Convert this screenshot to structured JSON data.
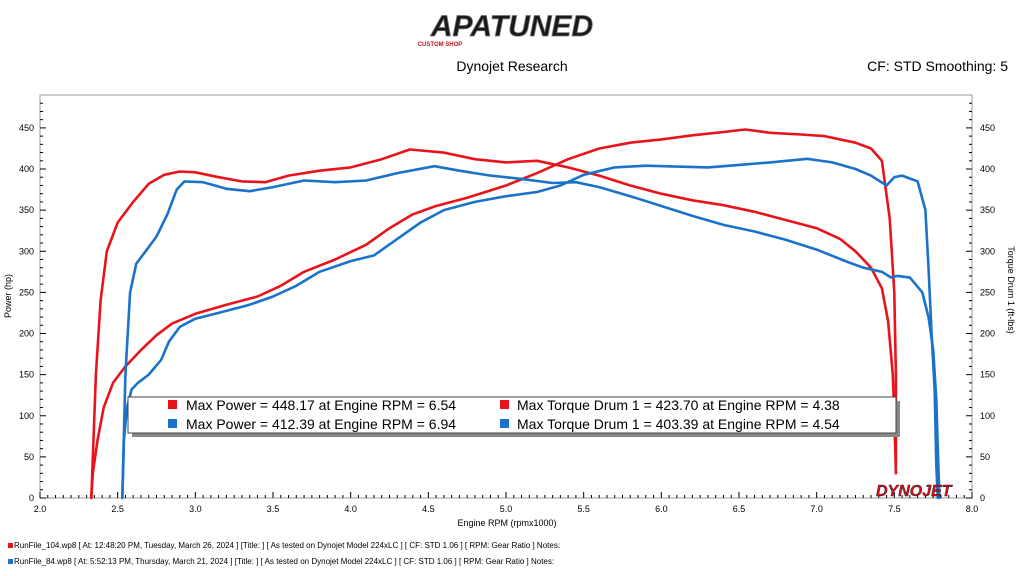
{
  "header": {
    "logo_text": "APATUNED",
    "logo_subtext": "CUSTOM SHOP",
    "title": "Dynojet Research",
    "settings": "CF: STD Smoothing: 5"
  },
  "watermark": "DYNOJET",
  "colors": {
    "run1": "#e8141b",
    "run2": "#1a73c8"
  },
  "chart_data": {
    "type": "line",
    "xlabel": "Engine RPM (rpmx1000)",
    "ylabel_left": "Power (hp)",
    "ylabel_right": "Torque Drum 1 (ft-lbs)",
    "xlim": [
      2.0,
      8.0
    ],
    "ylim": [
      0,
      490
    ],
    "x_ticks": [
      2.0,
      2.5,
      3.0,
      3.5,
      4.0,
      4.5,
      5.0,
      5.5,
      6.0,
      6.5,
      7.0,
      7.5,
      8.0
    ],
    "y_ticks": [
      0,
      50,
      100,
      150,
      200,
      250,
      300,
      350,
      400,
      450
    ],
    "grid": false,
    "series": [
      {
        "name": "Power",
        "run": 1,
        "color": "#e8141b",
        "points": [
          [
            2.33,
            0
          ],
          [
            2.34,
            30
          ],
          [
            2.37,
            70
          ],
          [
            2.41,
            110
          ],
          [
            2.47,
            140
          ],
          [
            2.55,
            160
          ],
          [
            2.65,
            180
          ],
          [
            2.75,
            198
          ],
          [
            2.85,
            212
          ],
          [
            3.0,
            224
          ],
          [
            3.2,
            235
          ],
          [
            3.4,
            245
          ],
          [
            3.55,
            258
          ],
          [
            3.7,
            275
          ],
          [
            3.9,
            290
          ],
          [
            4.1,
            308
          ],
          [
            4.25,
            328
          ],
          [
            4.4,
            345
          ],
          [
            4.55,
            355
          ],
          [
            4.75,
            365
          ],
          [
            5.0,
            380
          ],
          [
            5.2,
            395
          ],
          [
            5.4,
            412
          ],
          [
            5.6,
            425
          ],
          [
            5.8,
            432
          ],
          [
            6.0,
            436
          ],
          [
            6.2,
            441
          ],
          [
            6.4,
            445
          ],
          [
            6.54,
            448
          ],
          [
            6.7,
            444
          ],
          [
            6.9,
            442
          ],
          [
            7.05,
            440
          ],
          [
            7.25,
            432
          ],
          [
            7.35,
            425
          ],
          [
            7.42,
            410
          ],
          [
            7.47,
            340
          ],
          [
            7.5,
            250
          ],
          [
            7.51,
            150
          ],
          [
            7.51,
            40
          ]
        ]
      },
      {
        "name": "Torque Drum 1",
        "run": 1,
        "color": "#e8141b",
        "points": [
          [
            2.33,
            0
          ],
          [
            2.36,
            150
          ],
          [
            2.39,
            240
          ],
          [
            2.43,
            300
          ],
          [
            2.5,
            335
          ],
          [
            2.6,
            360
          ],
          [
            2.7,
            382
          ],
          [
            2.8,
            393
          ],
          [
            2.9,
            397
          ],
          [
            3.0,
            396
          ],
          [
            3.15,
            390
          ],
          [
            3.3,
            385
          ],
          [
            3.45,
            384
          ],
          [
            3.6,
            392
          ],
          [
            3.8,
            398
          ],
          [
            4.0,
            402
          ],
          [
            4.2,
            412
          ],
          [
            4.38,
            423.7
          ],
          [
            4.6,
            420
          ],
          [
            4.8,
            412
          ],
          [
            5.0,
            408
          ],
          [
            5.2,
            410
          ],
          [
            5.4,
            402
          ],
          [
            5.6,
            392
          ],
          [
            5.8,
            380
          ],
          [
            6.0,
            370
          ],
          [
            6.2,
            362
          ],
          [
            6.4,
            356
          ],
          [
            6.6,
            348
          ],
          [
            6.8,
            338
          ],
          [
            7.0,
            328
          ],
          [
            7.15,
            315
          ],
          [
            7.25,
            300
          ],
          [
            7.35,
            280
          ],
          [
            7.42,
            255
          ],
          [
            7.46,
            215
          ],
          [
            7.49,
            150
          ],
          [
            7.5,
            100
          ],
          [
            7.51,
            30
          ]
        ]
      },
      {
        "name": "Power",
        "run": 2,
        "color": "#1a73c8",
        "points": [
          [
            2.53,
            0
          ],
          [
            2.54,
            70
          ],
          [
            2.56,
            110
          ],
          [
            2.59,
            132
          ],
          [
            2.63,
            140
          ],
          [
            2.7,
            150
          ],
          [
            2.78,
            168
          ],
          [
            2.83,
            190
          ],
          [
            2.9,
            208
          ],
          [
            3.0,
            218
          ],
          [
            3.15,
            225
          ],
          [
            3.35,
            235
          ],
          [
            3.5,
            245
          ],
          [
            3.65,
            258
          ],
          [
            3.8,
            275
          ],
          [
            4.0,
            288
          ],
          [
            4.15,
            295
          ],
          [
            4.3,
            315
          ],
          [
            4.45,
            335
          ],
          [
            4.6,
            350
          ],
          [
            4.8,
            360
          ],
          [
            5.0,
            367
          ],
          [
            5.2,
            372
          ],
          [
            5.35,
            380
          ],
          [
            5.5,
            393
          ],
          [
            5.7,
            402
          ],
          [
            5.9,
            404
          ],
          [
            6.1,
            403
          ],
          [
            6.3,
            402
          ],
          [
            6.5,
            405
          ],
          [
            6.7,
            408
          ],
          [
            6.94,
            412.39
          ],
          [
            7.1,
            408
          ],
          [
            7.25,
            400
          ],
          [
            7.35,
            392
          ],
          [
            7.45,
            380
          ],
          [
            7.5,
            390
          ],
          [
            7.55,
            392
          ],
          [
            7.65,
            385
          ],
          [
            7.7,
            350
          ],
          [
            7.72,
            280
          ],
          [
            7.74,
            200
          ],
          [
            7.76,
            130
          ],
          [
            7.77,
            40
          ],
          [
            7.78,
            0
          ]
        ]
      },
      {
        "name": "Torque Drum 1",
        "run": 2,
        "color": "#1a73c8",
        "points": [
          [
            2.53,
            0
          ],
          [
            2.55,
            150
          ],
          [
            2.58,
            250
          ],
          [
            2.62,
            285
          ],
          [
            2.68,
            300
          ],
          [
            2.75,
            318
          ],
          [
            2.82,
            345
          ],
          [
            2.88,
            375
          ],
          [
            2.93,
            385
          ],
          [
            3.05,
            384
          ],
          [
            3.2,
            376
          ],
          [
            3.35,
            373
          ],
          [
            3.5,
            378
          ],
          [
            3.7,
            386
          ],
          [
            3.9,
            384
          ],
          [
            4.1,
            386
          ],
          [
            4.3,
            395
          ],
          [
            4.54,
            403.4
          ],
          [
            4.7,
            398
          ],
          [
            4.9,
            392
          ],
          [
            5.1,
            388
          ],
          [
            5.3,
            383
          ],
          [
            5.45,
            384
          ],
          [
            5.6,
            378
          ],
          [
            5.8,
            367
          ],
          [
            6.0,
            355
          ],
          [
            6.2,
            343
          ],
          [
            6.4,
            332
          ],
          [
            6.6,
            324
          ],
          [
            6.8,
            314
          ],
          [
            7.0,
            302
          ],
          [
            7.2,
            287
          ],
          [
            7.3,
            280
          ],
          [
            7.42,
            275
          ],
          [
            7.48,
            268
          ],
          [
            7.52,
            270
          ],
          [
            7.6,
            268
          ],
          [
            7.68,
            250
          ],
          [
            7.72,
            220
          ],
          [
            7.75,
            180
          ],
          [
            7.77,
            120
          ],
          [
            7.78,
            60
          ],
          [
            7.79,
            0
          ]
        ]
      }
    ],
    "legend": {
      "placement": "bottom-center",
      "rows": [
        {
          "color": "#e8141b",
          "power": "Max Power = 448.17 at Engine RPM = 6.54",
          "torque": "Max Torque Drum 1 = 423.70 at Engine RPM = 4.38"
        },
        {
          "color": "#1a73c8",
          "power": "Max Power = 412.39 at Engine RPM = 6.94",
          "torque": "Max Torque Drum 1 = 403.39 at Engine RPM = 4.54"
        }
      ]
    }
  },
  "files": [
    {
      "color": "#e8141b",
      "text": "RunFile_104.wp8 [ At: 12:48:20 PM, Tuesday, March 26, 2024 ] [Title: ] [ As tested on Dynojet Model 224xLC ] [ CF: STD 1.06 ] [ RPM: Gear Ratio ] Notes:"
    },
    {
      "color": "#1a73c8",
      "text": "RunFile_84.wp8 [ At: 5:52:13 PM, Thursday, March 21, 2024 ] [Title: ] [ As tested on Dynojet Model 224xLC ] [ CF: STD 1.06 ] [ RPM: Gear Ratio ] Notes:"
    }
  ]
}
